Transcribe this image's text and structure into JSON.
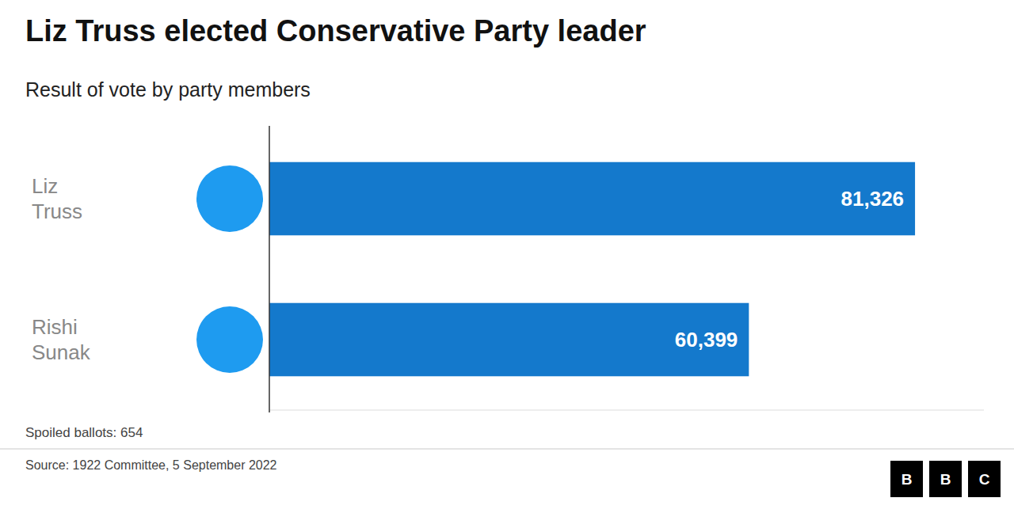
{
  "chart_data": {
    "type": "bar",
    "orientation": "horizontal",
    "title": "Liz Truss elected Conservative Party leader",
    "subtitle": "Result of vote by party members",
    "categories": [
      "Liz Truss",
      "Rishi Sunak"
    ],
    "values": [
      81326,
      60399
    ],
    "value_labels": [
      "81,326",
      "60,399"
    ],
    "data_labels": true,
    "color": "#1479CC",
    "xlim": [
      0,
      90000
    ],
    "tick_labels": false,
    "grid": false,
    "annotations": [
      "Spoiled ballots: 654",
      "Source: 1922 Committee, 5 September 2022",
      "BBC"
    ]
  }
}
